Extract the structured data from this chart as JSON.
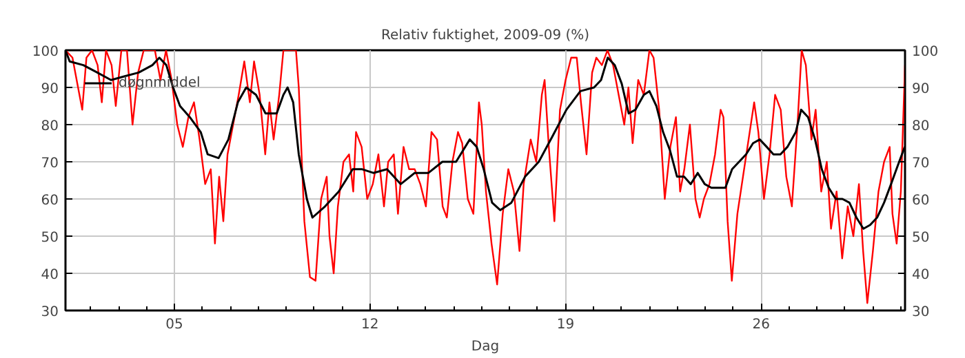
{
  "chart_data": {
    "type": "line",
    "title": "Relativ fuktighet, 2009-09 (%)",
    "xlabel": "Dag",
    "xlim": [
      1.1,
      31.15
    ],
    "ylim": [
      30,
      100
    ],
    "y2lim": [
      30,
      100
    ],
    "xticks": [
      {
        "value": 2,
        "label": null
      },
      {
        "value": 3,
        "label": null
      },
      {
        "value": 4,
        "label": null
      },
      {
        "value": 5,
        "label": "05"
      },
      {
        "value": 6,
        "label": null
      },
      {
        "value": 7,
        "label": null
      },
      {
        "value": 8,
        "label": null
      },
      {
        "value": 9,
        "label": null
      },
      {
        "value": 10,
        "label": null
      },
      {
        "value": 11,
        "label": null
      },
      {
        "value": 12,
        "label": "12"
      },
      {
        "value": 13,
        "label": null
      },
      {
        "value": 14,
        "label": null
      },
      {
        "value": 15,
        "label": null
      },
      {
        "value": 16,
        "label": null
      },
      {
        "value": 17,
        "label": null
      },
      {
        "value": 18,
        "label": null
      },
      {
        "value": 19,
        "label": "19"
      },
      {
        "value": 20,
        "label": null
      },
      {
        "value": 21,
        "label": null
      },
      {
        "value": 22,
        "label": null
      },
      {
        "value": 23,
        "label": null
      },
      {
        "value": 24,
        "label": null
      },
      {
        "value": 25,
        "label": null
      },
      {
        "value": 26,
        "label": "26"
      },
      {
        "value": 27,
        "label": null
      },
      {
        "value": 28,
        "label": null
      },
      {
        "value": 29,
        "label": null
      },
      {
        "value": 30,
        "label": null
      },
      {
        "value": 31,
        "label": null
      }
    ],
    "yticks": [
      30,
      40,
      50,
      60,
      70,
      80,
      90,
      100
    ],
    "y2ticks": [
      30,
      40,
      50,
      60,
      70,
      80,
      90,
      100
    ],
    "grid": true,
    "legend": "top left",
    "line_style": "solid",
    "marker": "none",
    "series": [
      {
        "color": "#ff0000",
        "x": [
          1.1,
          1.35,
          1.55,
          1.7,
          1.85,
          2.05,
          2.25,
          2.4,
          2.55,
          2.75,
          2.9,
          3.1,
          3.3,
          3.5,
          3.7,
          3.9,
          4.1,
          4.3,
          4.5,
          4.7,
          4.9,
          5.1,
          5.3,
          5.5,
          5.7,
          5.9,
          6.1,
          6.3,
          6.45,
          6.6,
          6.75,
          6.9,
          7.1,
          7.3,
          7.5,
          7.7,
          7.85,
          8.05,
          8.25,
          8.4,
          8.55,
          8.75,
          8.9,
          9.15,
          9.35,
          9.45,
          9.65,
          9.85,
          10.05,
          10.25,
          10.45,
          10.55,
          10.7,
          10.85,
          11.05,
          11.25,
          11.4,
          11.5,
          11.7,
          11.9,
          12.1,
          12.3,
          12.5,
          12.65,
          12.85,
          13.0,
          13.2,
          13.4,
          13.6,
          13.8,
          14.0,
          14.2,
          14.4,
          14.6,
          14.75,
          14.95,
          15.15,
          15.3,
          15.5,
          15.7,
          15.9,
          16.0,
          16.15,
          16.35,
          16.55,
          16.75,
          16.95,
          17.15,
          17.35,
          17.5,
          17.75,
          17.95,
          18.15,
          18.25,
          18.4,
          18.6,
          18.8,
          19.0,
          19.2,
          19.4,
          19.55,
          19.75,
          19.95,
          20.1,
          20.3,
          20.5,
          20.7,
          20.9,
          21.1,
          21.25,
          21.4,
          21.6,
          21.8,
          22.0,
          22.15,
          22.35,
          22.55,
          22.75,
          22.95,
          23.1,
          23.25,
          23.45,
          23.65,
          23.8,
          23.95,
          24.15,
          24.35,
          24.55,
          24.65,
          24.8,
          24.95,
          25.15,
          25.35,
          25.55,
          25.75,
          25.9,
          26.1,
          26.3,
          26.5,
          26.7,
          26.9,
          27.1,
          27.3,
          27.45,
          27.6,
          27.8,
          27.95,
          28.15,
          28.35,
          28.5,
          28.7,
          28.9,
          29.1,
          29.3,
          29.5,
          29.65,
          29.8,
          30.0,
          30.2,
          30.4,
          30.6,
          30.7,
          30.85,
          31.0,
          31.15
        ],
        "values": [
          100,
          98,
          90,
          84,
          98,
          100,
          96,
          86,
          100,
          96,
          85,
          100,
          100,
          80,
          94,
          100,
          100,
          100,
          92,
          100,
          92,
          80,
          74,
          82,
          86,
          76,
          64,
          68,
          48,
          66,
          54,
          72,
          80,
          88,
          97,
          86,
          97,
          88,
          72,
          86,
          76,
          88,
          100,
          100,
          100,
          90,
          54,
          39,
          38,
          60,
          66,
          50,
          40,
          58,
          70,
          72,
          62,
          78,
          74,
          60,
          64,
          72,
          58,
          70,
          72,
          56,
          74,
          68,
          68,
          64,
          58,
          78,
          76,
          58,
          55,
          70,
          78,
          75,
          60,
          56,
          86,
          80,
          62,
          48,
          37,
          56,
          68,
          62,
          46,
          64,
          76,
          70,
          88,
          92,
          74,
          54,
          84,
          92,
          98,
          98,
          86,
          72,
          94,
          98,
          96,
          100,
          96,
          88,
          80,
          90,
          75,
          92,
          88,
          100,
          98,
          84,
          60,
          74,
          82,
          62,
          68,
          80,
          60,
          55,
          60,
          64,
          72,
          84,
          82,
          54,
          38,
          56,
          66,
          76,
          86,
          78,
          60,
          72,
          88,
          84,
          66,
          58,
          80,
          100,
          96,
          76,
          84,
          62,
          70,
          52,
          62,
          44,
          58,
          50,
          64,
          46,
          32,
          46,
          62,
          70,
          74,
          56,
          48,
          62,
          96
        ]
      },
      {
        "name": "døgnmiddel",
        "color": "#000000",
        "x": [
          1.1,
          1.25,
          1.74,
          2.24,
          2.73,
          3.22,
          3.72,
          4.21,
          4.46,
          4.71,
          4.95,
          5.2,
          5.55,
          5.94,
          6.19,
          6.58,
          6.93,
          7.27,
          7.57,
          7.92,
          8.26,
          8.66,
          8.9,
          9.05,
          9.25,
          9.45,
          9.74,
          9.94,
          10.39,
          10.88,
          11.38,
          11.72,
          12.12,
          12.61,
          13.1,
          13.6,
          14.09,
          14.59,
          15.08,
          15.57,
          15.82,
          16.07,
          16.37,
          16.66,
          17.06,
          17.55,
          18.04,
          18.54,
          19.03,
          19.53,
          20.02,
          20.27,
          20.51,
          20.76,
          21.01,
          21.26,
          21.5,
          21.8,
          22.0,
          22.25,
          22.49,
          22.74,
          22.99,
          23.24,
          23.48,
          23.73,
          23.98,
          24.22,
          24.47,
          24.72,
          24.96,
          25.21,
          25.46,
          25.71,
          25.95,
          26.2,
          26.44,
          26.69,
          26.94,
          27.24,
          27.43,
          27.68,
          27.93,
          28.17,
          28.42,
          28.67,
          28.91,
          29.16,
          29.41,
          29.66,
          29.9,
          30.15,
          30.4,
          30.65,
          30.89,
          31.14
        ],
        "values": [
          100,
          97,
          96,
          94,
          92,
          93,
          94,
          96,
          98,
          96,
          90,
          85,
          82,
          78,
          72,
          71,
          76,
          86,
          90,
          88,
          83,
          83,
          88,
          90,
          86,
          72,
          60,
          55,
          58,
          62,
          68,
          68,
          67,
          68,
          64,
          67,
          67,
          70,
          70,
          76,
          74,
          68,
          59,
          57,
          59,
          66,
          70,
          77,
          84,
          89,
          90,
          92,
          98,
          96,
          91,
          83,
          84,
          88,
          89,
          85,
          78,
          73,
          66,
          66,
          64,
          67,
          64,
          63,
          63,
          63,
          68,
          70,
          72,
          75,
          76,
          74,
          72,
          72,
          74,
          78,
          84,
          82,
          76,
          68,
          63,
          60,
          60,
          59,
          55,
          52,
          53,
          55,
          59,
          64,
          69,
          74
        ]
      }
    ]
  }
}
